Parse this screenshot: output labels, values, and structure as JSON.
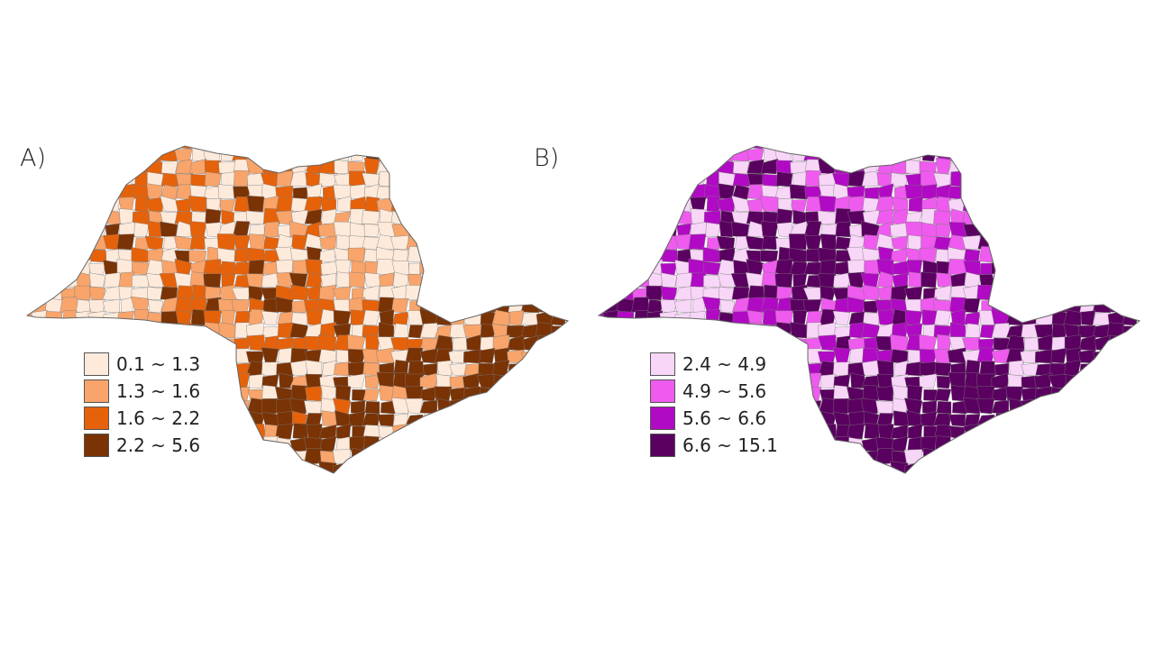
{
  "panels": [
    {
      "label": "A)",
      "legend": [
        {
          "range": "0.1 ~ 1.3",
          "color": "#fdeadb"
        },
        {
          "range": "1.3 ~ 1.6",
          "color": "#f8a46a"
        },
        {
          "range": "1.6 ~ 2.2",
          "color": "#e5620a"
        },
        {
          "range": "2.2 ~ 5.6",
          "color": "#7a3305"
        }
      ]
    },
    {
      "label": "B)",
      "legend": [
        {
          "range": "2.4 ~ 4.9",
          "color": "#f8d6f8"
        },
        {
          "range": "4.9 ~ 5.6",
          "color": "#ee5bee"
        },
        {
          "range": "5.6 ~ 6.6",
          "color": "#b10ac4"
        },
        {
          "range": "6.6 ~ 15.1",
          "color": "#5a0060"
        }
      ]
    }
  ]
}
